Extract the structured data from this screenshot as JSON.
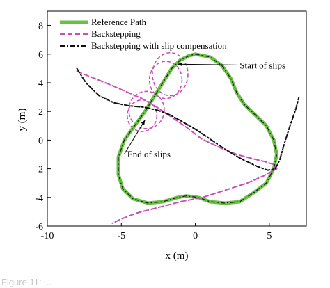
{
  "chart_data": {
    "type": "line",
    "title": "",
    "xlabel": "x (m)",
    "ylabel": "y (m)",
    "xlim": [
      -10,
      7.5
    ],
    "ylim": [
      -6,
      9
    ],
    "x_ticks": [
      -10,
      -5,
      0,
      5
    ],
    "y_ticks": [
      -6,
      -4,
      -2,
      0,
      2,
      4,
      6,
      8
    ],
    "grid": false,
    "legend_position": "top-left",
    "series": [
      {
        "name": "Reference Path",
        "color": "#6abf45",
        "style": "solid-thick",
        "x": [
          0,
          1,
          1.8,
          2.4,
          2.8,
          3.3,
          4.0,
          4.8,
          5.3,
          5.5,
          5.3,
          4.8,
          3.9,
          3.0,
          2.0,
          1.0,
          0.2,
          -0.6,
          -1.2,
          -2.2,
          -3.2,
          -4.2,
          -4.9,
          -5.2,
          -5.2,
          -4.8,
          -4.1,
          -3.4,
          -2.8,
          -2.2,
          -1.6,
          -1.0,
          -0.4,
          0
        ],
        "y": [
          6.0,
          5.8,
          5.2,
          4.3,
          3.3,
          2.5,
          1.8,
          1.0,
          0,
          -1.0,
          -2.0,
          -3.0,
          -3.7,
          -4.3,
          -4.4,
          -4.3,
          -4.0,
          -3.9,
          -4.0,
          -4.3,
          -4.4,
          -4.1,
          -3.4,
          -2.4,
          -1.2,
          0,
          1.0,
          2.0,
          3.0,
          4.0,
          5.0,
          5.6,
          5.9,
          6.0
        ]
      },
      {
        "name": "Backstepping",
        "color": "#c84fb8",
        "style": "dashed",
        "x": [
          -8,
          -6.8,
          -5.6,
          -4.5,
          -3.6,
          -2.6,
          -1.6,
          -0.6,
          0.4,
          1.6,
          2.8,
          3.9,
          4.7,
          5.3,
          5.5,
          4.6,
          3.5,
          2.0,
          0.5,
          -1.0,
          -2.5,
          -4.0,
          -5.0,
          -5.6
        ],
        "y": [
          4.8,
          4.3,
          3.8,
          3.3,
          2.9,
          2.3,
          1.6,
          0.9,
          0.1,
          -0.5,
          -1.0,
          -1.3,
          -1.5,
          -1.7,
          -2.0,
          -2.5,
          -3.0,
          -3.5,
          -4.0,
          -4.3,
          -4.7,
          -5.1,
          -5.5,
          -5.8
        ]
      },
      {
        "name": "Backstepping with slip compensation",
        "color": "#111111",
        "style": "dash-dot",
        "x": [
          -8,
          -7.4,
          -6.5,
          -5.5,
          -4.5,
          -3.5,
          -2.6,
          -1.8,
          -0.9,
          0.1,
          1.1,
          2.1,
          3.1,
          4.1,
          4.9,
          5.4,
          5.7,
          6.0,
          6.4,
          6.8,
          7.0
        ],
        "y": [
          5.0,
          4.0,
          3.1,
          2.6,
          2.4,
          2.3,
          2.1,
          1.8,
          1.3,
          0.7,
          0.0,
          -0.7,
          -1.3,
          -1.8,
          -2.1,
          -2.0,
          -1.4,
          -0.3,
          1.0,
          2.2,
          3.0
        ]
      }
    ],
    "slip_ellipses": {
      "color": "#c84fb8",
      "cx": [
        -2.0,
        -1.7,
        -3.6,
        -3.3
      ],
      "cy": [
        4.2,
        4.6,
        1.7,
        2.1
      ],
      "rx": [
        1.1,
        1.2,
        1.0,
        1.2
      ],
      "ry": [
        1.3,
        1.5,
        1.1,
        1.3
      ]
    },
    "annotations": [
      {
        "text": "Start of slips",
        "x": 3.0,
        "y": 5.0,
        "arrow_to_x": -1.2,
        "arrow_to_y": 5.3
      },
      {
        "text": "End of slips",
        "x": -4.6,
        "y": -1.2,
        "arrow_to_x": -3.4,
        "arrow_to_y": 1.4
      }
    ]
  },
  "caption": "Figure 11: ..."
}
